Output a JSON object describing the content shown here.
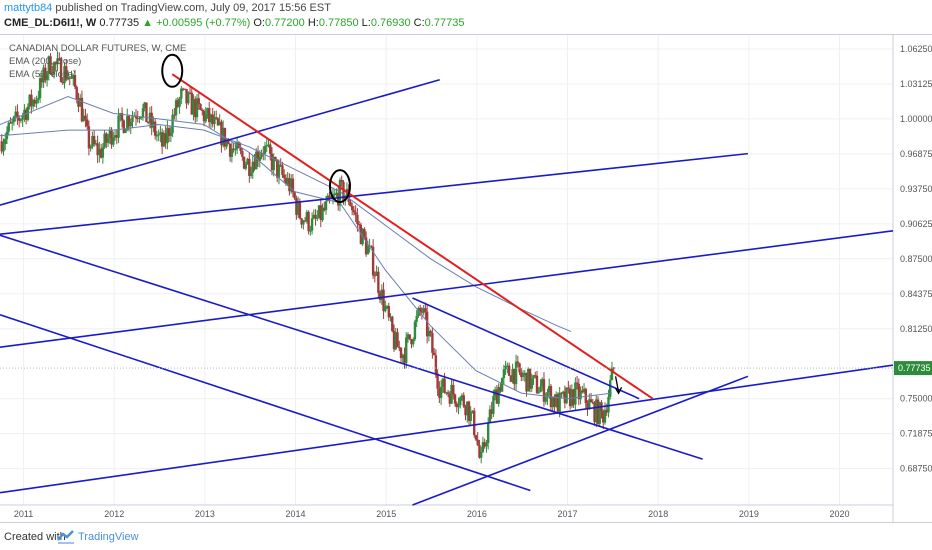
{
  "header": {
    "user": "mattytb84",
    "published": " published on TradingView.com, July 09, 2017 15:56 EST",
    "symbol": "CME_DL:D6I1!, W",
    "last": "0.77735",
    "change": "+0.00595 (+0.77%)",
    "o_label": "O:",
    "o": "0.77200",
    "h_label": "H:",
    "h": "0.77850",
    "l_label": "L:",
    "l": "0.76930",
    "c_label": "C:",
    "c": "0.77735"
  },
  "legend": {
    "title": "CANADIAN DOLLAR FUTURES, W, CME",
    "ema200": "EMA (200, close)",
    "ema55": "EMA (55, close)"
  },
  "footer": {
    "created": "Created with",
    "brand": "TradingView"
  },
  "colors": {
    "up": "#2e8b3c",
    "down": "#a33a3a",
    "channel": "#1a1acc",
    "resistance": "#e02020",
    "ema": "#6a7fb0",
    "last_tag": "#2e8b3c"
  },
  "chart_data": {
    "type": "candlestick",
    "title": "CANADIAN DOLLAR FUTURES, W, CME",
    "x_ticks": [
      "2011",
      "2012",
      "2013",
      "2014",
      "2015",
      "2016",
      "2017",
      "2018",
      "2019",
      "2020"
    ],
    "y_ticks": [
      "1.06250",
      "1.03125",
      "1.00000",
      "0.96875",
      "0.93750",
      "0.90625",
      "0.87500",
      "0.84375",
      "0.81250",
      "0.75000",
      "0.71875",
      "0.68750"
    ],
    "ylim": [
      0.655,
      1.075
    ],
    "xlim": [
      2010.75,
      2020.6
    ],
    "last_price": "0.77735",
    "price_path": [
      [
        2010.75,
        0.98
      ],
      [
        2010.95,
        1.0
      ],
      [
        2011.15,
        1.02
      ],
      [
        2011.3,
        1.05
      ],
      [
        2011.5,
        1.04
      ],
      [
        2011.62,
        1.02
      ],
      [
        2011.72,
        0.98
      ],
      [
        2011.85,
        0.97
      ],
      [
        2012.0,
        0.99
      ],
      [
        2012.15,
        1.0
      ],
      [
        2012.3,
        1.01
      ],
      [
        2012.45,
        0.99
      ],
      [
        2012.55,
        0.975
      ],
      [
        2012.65,
        1.0
      ],
      [
        2012.75,
        1.02
      ],
      [
        2012.9,
        1.01
      ],
      [
        2013.05,
        1.0
      ],
      [
        2013.2,
        0.985
      ],
      [
        2013.35,
        0.97
      ],
      [
        2013.5,
        0.96
      ],
      [
        2013.65,
        0.975
      ],
      [
        2013.8,
        0.955
      ],
      [
        2013.95,
        0.94
      ],
      [
        2014.05,
        0.915
      ],
      [
        2014.2,
        0.905
      ],
      [
        2014.35,
        0.92
      ],
      [
        2014.5,
        0.935
      ],
      [
        2014.6,
        0.93
      ],
      [
        2014.72,
        0.9
      ],
      [
        2014.85,
        0.875
      ],
      [
        2015.0,
        0.83
      ],
      [
        2015.1,
        0.8
      ],
      [
        2015.2,
        0.79
      ],
      [
        2015.3,
        0.81
      ],
      [
        2015.4,
        0.83
      ],
      [
        2015.5,
        0.8
      ],
      [
        2015.6,
        0.76
      ],
      [
        2015.75,
        0.755
      ],
      [
        2015.9,
        0.745
      ],
      [
        2016.0,
        0.72
      ],
      [
        2016.05,
        0.69
      ],
      [
        2016.12,
        0.72
      ],
      [
        2016.2,
        0.75
      ],
      [
        2016.3,
        0.77
      ],
      [
        2016.4,
        0.775
      ],
      [
        2016.5,
        0.77
      ],
      [
        2016.6,
        0.765
      ],
      [
        2016.7,
        0.76
      ],
      [
        2016.8,
        0.755
      ],
      [
        2016.9,
        0.745
      ],
      [
        2017.0,
        0.75
      ],
      [
        2017.1,
        0.755
      ],
      [
        2017.2,
        0.75
      ],
      [
        2017.3,
        0.74
      ],
      [
        2017.4,
        0.735
      ],
      [
        2017.45,
        0.75
      ],
      [
        2017.52,
        0.777
      ]
    ],
    "ema200": [
      [
        2010.75,
        0.985
      ],
      [
        2011.5,
        0.99
      ],
      [
        2012.0,
        0.99
      ],
      [
        2012.5,
        0.995
      ],
      [
        2013.0,
        0.99
      ],
      [
        2013.5,
        0.975
      ],
      [
        2014.0,
        0.955
      ],
      [
        2014.5,
        0.935
      ],
      [
        2015.0,
        0.905
      ],
      [
        2015.5,
        0.875
      ],
      [
        2016.0,
        0.85
      ],
      [
        2016.5,
        0.83
      ],
      [
        2016.9,
        0.815
      ],
      [
        2017.05,
        0.81
      ]
    ],
    "ema55": [
      [
        2010.75,
        0.995
      ],
      [
        2011.5,
        1.02
      ],
      [
        2012.0,
        1.005
      ],
      [
        2012.5,
        1.0
      ],
      [
        2013.0,
        0.995
      ],
      [
        2013.5,
        0.97
      ],
      [
        2014.0,
        0.935
      ],
      [
        2014.5,
        0.925
      ],
      [
        2015.0,
        0.865
      ],
      [
        2015.5,
        0.815
      ],
      [
        2016.0,
        0.775
      ],
      [
        2016.5,
        0.755
      ],
      [
        2017.0,
        0.75
      ],
      [
        2017.5,
        0.755
      ]
    ],
    "resistance": [
      [
        2012.65,
        1.04
      ],
      [
        2017.95,
        0.75
      ]
    ],
    "channel_lines": [
      [
        [
          2010.75,
          0.923
        ],
        [
          2015.6,
          1.035
        ]
      ],
      [
        [
          2010.75,
          0.897
        ],
        [
          2019.0,
          0.969
        ]
      ],
      [
        [
          2010.75,
          0.796
        ],
        [
          2020.6,
          0.9
        ]
      ],
      [
        [
          2010.75,
          0.666
        ],
        [
          2020.6,
          0.78
        ]
      ],
      [
        [
          2015.3,
          0.655
        ],
        [
          2019.0,
          0.77
        ]
      ],
      [
        [
          2010.75,
          0.896
        ],
        [
          2018.5,
          0.696
        ]
      ],
      [
        [
          2010.75,
          0.825
        ],
        [
          2016.6,
          0.668
        ]
      ],
      [
        [
          2015.3,
          0.84
        ],
        [
          2017.8,
          0.75
        ]
      ]
    ],
    "markers": [
      [
        2012.65,
        1.043
      ],
      [
        2014.5,
        0.94
      ]
    ]
  }
}
